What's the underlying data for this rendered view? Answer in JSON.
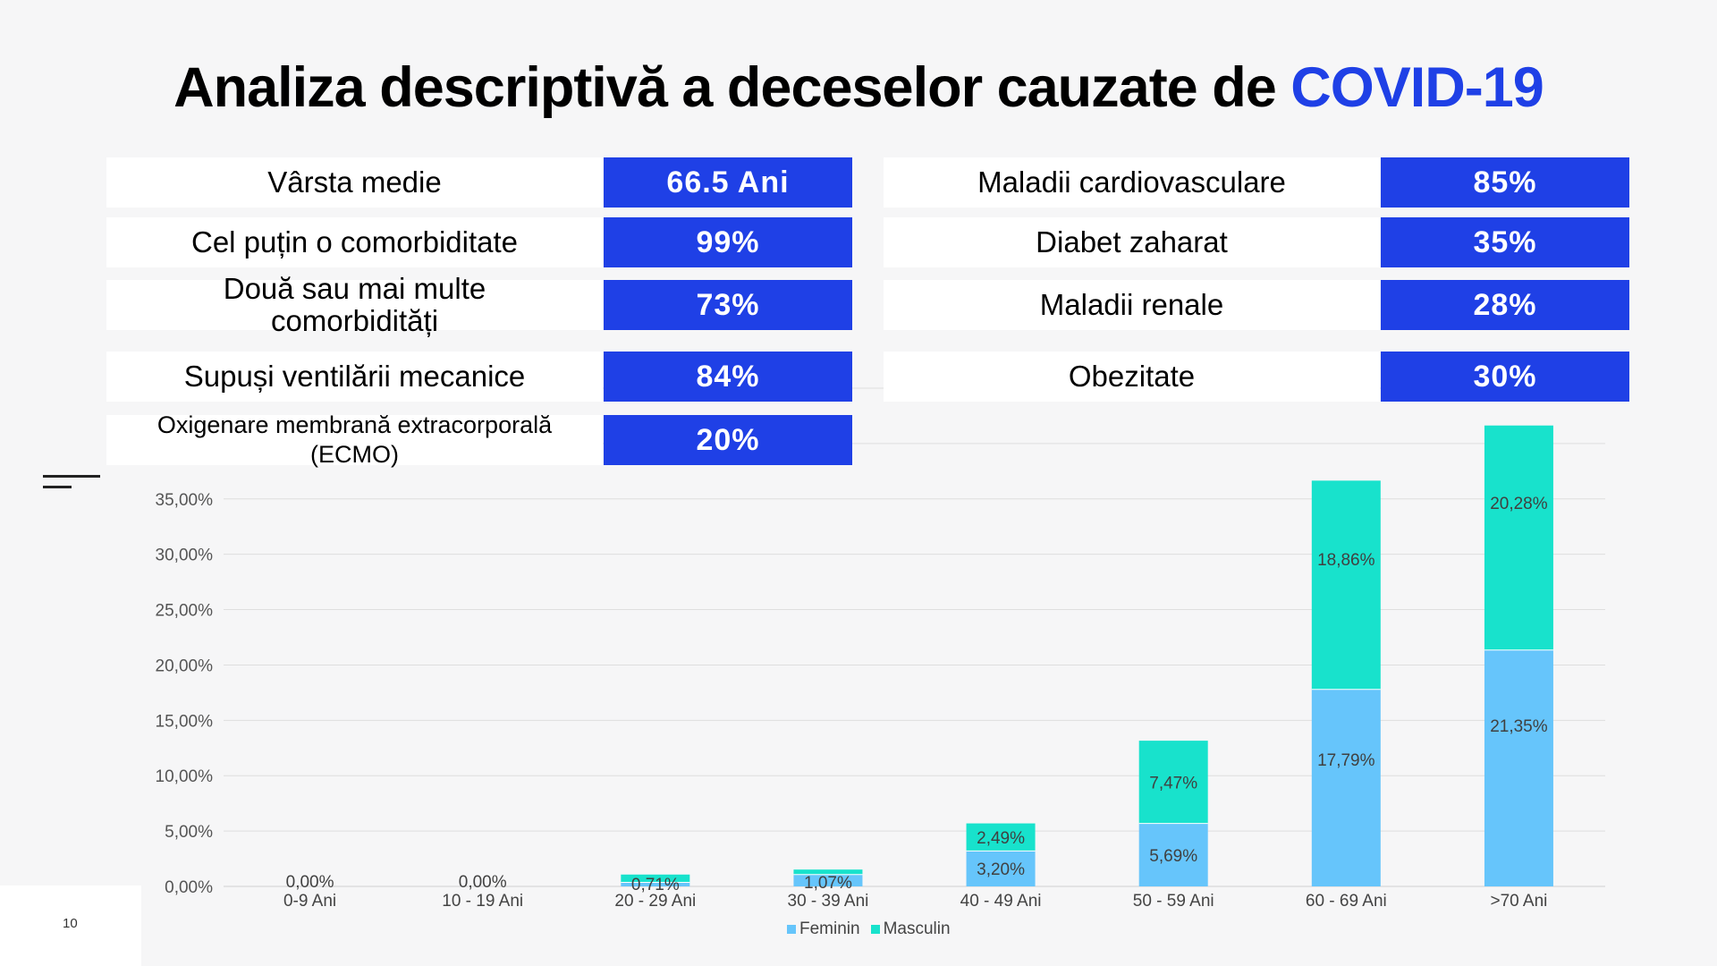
{
  "title": {
    "text": "Analiza descriptivă a deceselor cauzate de ",
    "accent": "COVID-19"
  },
  "left_stats": [
    {
      "label": "Vârsta medie",
      "value": "66.5 Ani"
    },
    {
      "label": "Cel puțin o comorbiditate",
      "value": "99%"
    },
    {
      "label": "Două sau mai multe comorbidități",
      "value": "73%"
    },
    {
      "label": "Supuși ventilării mecanice",
      "value": "84%"
    },
    {
      "label": "Oxigenare membrană extracorporală (ECMO)",
      "value": "20%"
    }
  ],
  "right_stats": [
    {
      "label": "Maladii cardiovasculare",
      "value": "85%"
    },
    {
      "label": "Diabet zaharat",
      "value": "35%"
    },
    {
      "label": "Maladii renale",
      "value": "28%"
    },
    {
      "label": "Obezitate",
      "value": "30%"
    }
  ],
  "page_number": "10",
  "colors": {
    "accent": "#1f40e6",
    "feminin": "#66c5fb",
    "masculin": "#18e2cc"
  },
  "chart_data": {
    "type": "bar",
    "stacked": true,
    "categories": [
      "0-9 Ani",
      "10 - 19 Ani",
      "20 - 29 Ani",
      "30 - 39 Ani",
      "40 - 49 Ani",
      "50 - 59 Ani",
      "60 - 69 Ani",
      ">70 Ani"
    ],
    "series": [
      {
        "name": "Feminin",
        "values": [
          0.0,
          0.0,
          0.36,
          1.07,
          3.2,
          5.69,
          17.79,
          21.35
        ],
        "labels": [
          "0,00%",
          "0,00%",
          "",
          "1,07%",
          "3,20%",
          "5,69%",
          "17,79%",
          "21,35%"
        ]
      },
      {
        "name": "Masculin",
        "values": [
          0.0,
          0.0,
          0.71,
          0.45,
          2.49,
          7.47,
          18.86,
          20.28
        ],
        "labels": [
          "",
          "",
          "0,71%",
          "",
          "2,49%",
          "7,47%",
          "18,86%",
          "20,28%"
        ]
      }
    ],
    "y_ticks": [
      "0,00%",
      "5,00%",
      "10,00%",
      "15,00%",
      "20,00%",
      "25,00%",
      "30,00%",
      "35,00%"
    ],
    "ylim": [
      0,
      45
    ],
    "legend_position": "bottom",
    "grid": true
  }
}
